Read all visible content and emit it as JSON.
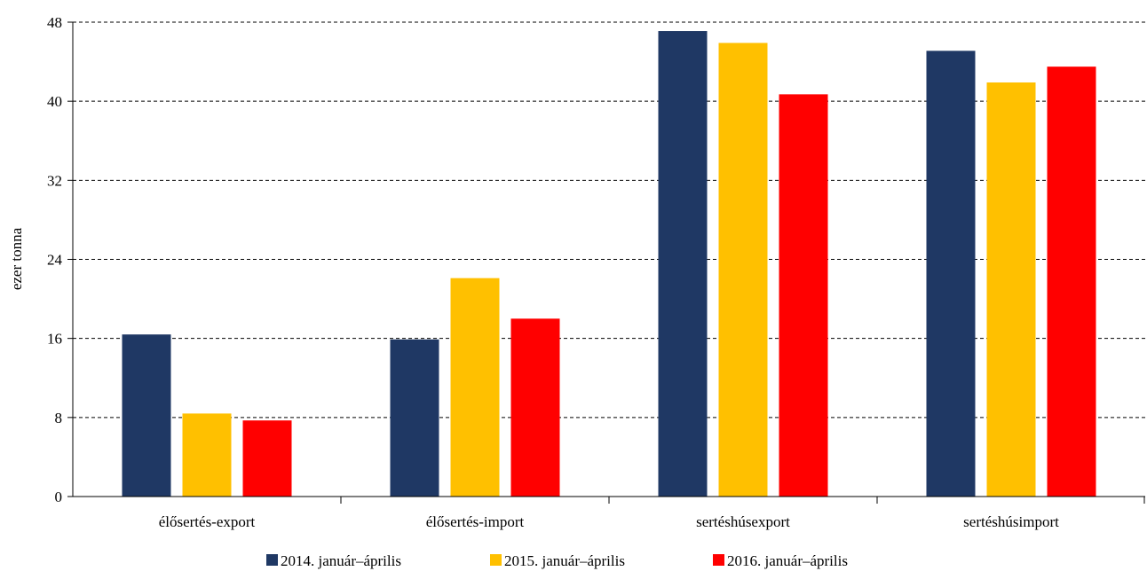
{
  "chart_data": {
    "type": "bar",
    "ylabel": "ezer tonna",
    "ylim": [
      0,
      48
    ],
    "yticks": [
      0,
      8,
      16,
      24,
      32,
      40,
      48
    ],
    "grid": "horizontal dashed",
    "legend_position": "bottom",
    "categories": [
      "élősertés-export",
      "élősertés-import",
      "sertéshúsexport",
      "sertéshúsimport"
    ],
    "series": [
      {
        "name": "2014. január–április",
        "color": "#1f3864",
        "values": [
          16.4,
          15.9,
          47.1,
          45.1
        ]
      },
      {
        "name": "2015. január–április",
        "color": "#ffc000",
        "values": [
          8.4,
          22.1,
          45.9,
          41.9
        ]
      },
      {
        "name": "2016. január–április",
        "color": "#ff0000",
        "values": [
          7.7,
          18.0,
          40.7,
          43.5
        ]
      }
    ]
  }
}
